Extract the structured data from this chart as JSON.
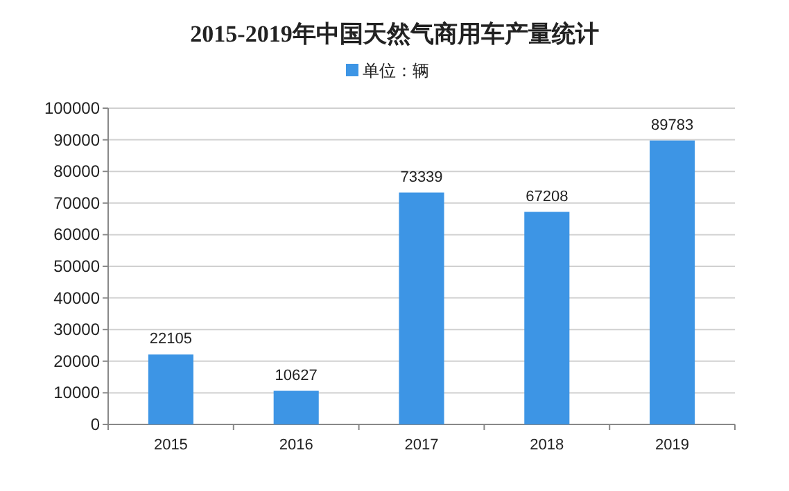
{
  "chart_data": {
    "type": "bar",
    "title": "2015-2019年中国天然气商用车产量统计",
    "categories": [
      "2015",
      "2016",
      "2017",
      "2018",
      "2019"
    ],
    "series": [
      {
        "name": "单位：辆",
        "color": "#3d95e5",
        "values": [
          22105,
          10627,
          73339,
          67208,
          89783
        ]
      }
    ],
    "ylim": [
      0,
      100000
    ],
    "yticks": [
      0,
      10000,
      20000,
      30000,
      40000,
      50000,
      60000,
      70000,
      80000,
      90000,
      100000
    ],
    "grid": "y",
    "legend": "top",
    "data_labels": true
  }
}
